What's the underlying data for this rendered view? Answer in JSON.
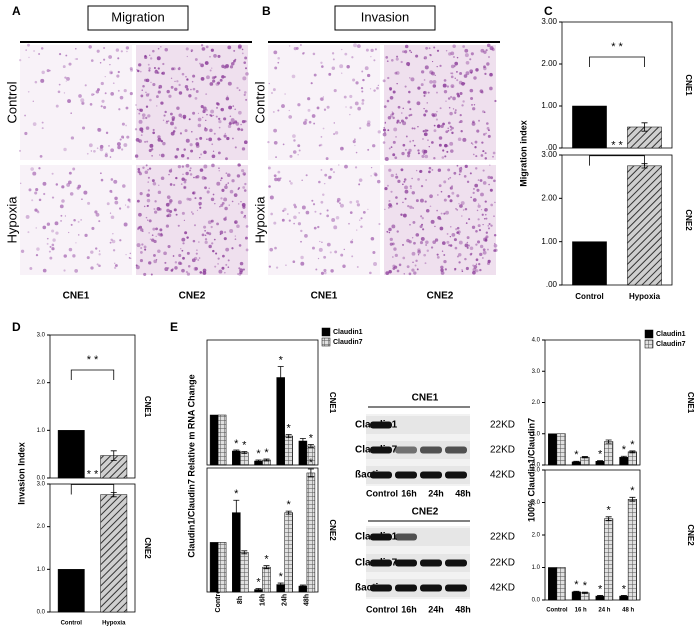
{
  "figure": {
    "panel_labels": [
      "A",
      "B",
      "C",
      "D",
      "E"
    ],
    "A": {
      "title": "Migration",
      "rows": [
        "Control",
        "Hypoxia"
      ],
      "columns": [
        "CNE1",
        "CNE2"
      ]
    },
    "B": {
      "title": "Invasion",
      "rows": [
        "Control",
        "Hypoxia"
      ],
      "columns": [
        "CNE1",
        "CNE2"
      ]
    },
    "blots": [
      {
        "title": "CNE1",
        "rows": [
          "Claudin1",
          "Claudin7",
          "ßactin"
        ],
        "sizes": [
          "22KD",
          "22KD",
          "42KD"
        ],
        "lanes": [
          "Control",
          "16h",
          "24h",
          "48h"
        ]
      },
      {
        "title": "CNE2",
        "rows": [
          "Claudin1",
          "Claudin7",
          "ßactin"
        ],
        "sizes": [
          "22KD",
          "22KD",
          "42KD"
        ],
        "lanes": [
          "Control",
          "16h",
          "24h",
          "48h"
        ]
      }
    ]
  },
  "chart_data": [
    {
      "type": "bar",
      "ylabel": "Migration index",
      "categories": [
        "Control",
        "Hypoxia"
      ],
      "panels": [
        {
          "name": "CNE1",
          "ylim": [
            0,
            3
          ],
          "yticks": [
            {
              "value": 0,
              "label": ".00"
            },
            {
              "value": 1,
              "label": "1.00"
            },
            {
              "value": 2,
              "label": "2.00"
            },
            {
              "value": 3,
              "label": "3.00"
            }
          ],
          "significance": "* *",
          "series": [
            {
              "colors": [
                "#000000",
                "#777777"
              ],
              "patterns": [
                null,
                "hatch"
              ],
              "values": [
                1.0,
                0.5
              ],
              "errors": [
                null,
                0.1
              ]
            }
          ]
        },
        {
          "name": "CNE2",
          "ylim": [
            0,
            3
          ],
          "yticks": [
            {
              "value": 0,
              "label": ".00"
            },
            {
              "value": 1,
              "label": "1.00"
            },
            {
              "value": 2,
              "label": "2.00"
            },
            {
              "value": 3,
              "label": "3.00"
            }
          ],
          "significance": "* *",
          "series": [
            {
              "colors": [
                "#000000",
                "#777777"
              ],
              "patterns": [
                null,
                "hatch"
              ],
              "values": [
                1.0,
                2.75
              ],
              "errors": [
                null,
                0.05
              ]
            }
          ]
        }
      ]
    },
    {
      "type": "bar",
      "ylabel": "Invasion Index",
      "categories": [
        "Control",
        "Hypoxia"
      ],
      "panels": [
        {
          "name": "CNE1",
          "ylim": [
            0,
            3
          ],
          "yticks": [
            {
              "value": 0,
              "label": "0.0"
            },
            {
              "value": 1,
              "label": "1.0"
            },
            {
              "value": 2,
              "label": "2.0"
            },
            {
              "value": 3,
              "label": "3.0"
            }
          ],
          "significance": "* *",
          "series": [
            {
              "colors": [
                "#000000",
                "#777777"
              ],
              "patterns": [
                null,
                "hatch"
              ],
              "values": [
                1.0,
                0.47
              ],
              "errors": [
                null,
                0.1
              ]
            }
          ]
        },
        {
          "name": "CNE2",
          "ylim": [
            0,
            3
          ],
          "yticks": [
            {
              "value": 0,
              "label": "0.0"
            },
            {
              "value": 1,
              "label": "1.0"
            },
            {
              "value": 2,
              "label": "2.0"
            },
            {
              "value": 3,
              "label": "3.0"
            }
          ],
          "significance": "* *",
          "series": [
            {
              "colors": [
                "#000000",
                "#777777"
              ],
              "patterns": [
                null,
                "hatch"
              ],
              "values": [
                1.0,
                2.75
              ],
              "errors": [
                null,
                0.05
              ]
            }
          ]
        }
      ]
    },
    {
      "type": "bar",
      "ylabel": "Claudin1/Claudin7 Relative m RNA Change",
      "categories": [
        "Control",
        "8h",
        "16h",
        "24h",
        "48h"
      ],
      "rotate_categories": true,
      "legend": true,
      "panels": [
        {
          "name": "CNE1",
          "ylim": [
            0,
            2.5
          ],
          "series": [
            {
              "name": "Claudin1",
              "color": "#000000",
              "values": [
                1.0,
                0.28,
                0.08,
                1.75,
                0.48
              ],
              "errors": [
                null,
                0.02,
                0.02,
                0.22,
                0.05
              ],
              "stars": [
                null,
                "*",
                "*",
                "*",
                null
              ]
            },
            {
              "name": "Claudin7",
              "color": "#888888",
              "pattern": "checker",
              "values": [
                1.0,
                0.25,
                0.1,
                0.58,
                0.38
              ],
              "errors": [
                null,
                0.02,
                0.02,
                0.03,
                0.03
              ],
              "stars": [
                null,
                "*",
                "*",
                "*",
                "*"
              ]
            }
          ]
        },
        {
          "name": "CNE2",
          "ylim": [
            0,
            2.5
          ],
          "series": [
            {
              "name": "Claudin1",
              "color": "#000000",
              "values": [
                1.0,
                1.6,
                0.05,
                0.15,
                0.12
              ],
              "errors": [
                null,
                0.25,
                0.02,
                0.03,
                0.02
              ],
              "stars": [
                null,
                "*",
                "*",
                "*",
                null
              ]
            },
            {
              "name": "Claudin7",
              "color": "#888888",
              "pattern": "checker",
              "values": [
                1.0,
                0.8,
                0.5,
                1.6,
                2.4
              ],
              "errors": [
                null,
                0.03,
                0.03,
                0.03,
                0.08
              ],
              "stars": [
                null,
                null,
                "*",
                "*",
                "*"
              ]
            }
          ]
        }
      ]
    },
    {
      "type": "bar",
      "ylabel": "100% Claudin1/Claudin7",
      "categories": [
        "Control",
        "16 h",
        "24 h",
        "48 h"
      ],
      "legend": true,
      "panels": [
        {
          "name": "CNE1",
          "ylim": [
            0,
            4
          ],
          "yticks": [
            {
              "value": 0,
              "label": "0.0"
            },
            {
              "value": 1,
              "label": "1.0"
            },
            {
              "value": 2,
              "label": "2.0"
            },
            {
              "value": 3,
              "label": "3.0"
            },
            {
              "value": 4,
              "label": "4.0"
            }
          ],
          "series": [
            {
              "name": "Claudin1",
              "color": "#000000",
              "values": [
                1.0,
                0.1,
                0.12,
                0.25
              ],
              "errors": [
                null,
                0.02,
                0.02,
                0.03
              ],
              "stars": [
                null,
                "*",
                "*",
                "*"
              ]
            },
            {
              "name": "Claudin7",
              "color": "#888888",
              "pattern": "checker",
              "values": [
                1.0,
                0.25,
                0.75,
                0.42
              ],
              "errors": [
                null,
                0.02,
                0.05,
                0.03
              ],
              "stars": [
                null,
                null,
                null,
                "*"
              ]
            }
          ]
        },
        {
          "name": "CNE2",
          "ylim": [
            0,
            4
          ],
          "yticks": [
            {
              "value": 0,
              "label": "0.0"
            },
            {
              "value": 1,
              "label": "1.0"
            },
            {
              "value": 2,
              "label": "2.0"
            },
            {
              "value": 3,
              "label": "3.0"
            },
            {
              "value": 4,
              "label": "4.0"
            }
          ],
          "series": [
            {
              "name": "Claudin1",
              "color": "#000000",
              "values": [
                1.0,
                0.25,
                0.12,
                0.12
              ],
              "errors": [
                null,
                0.02,
                0.02,
                0.02
              ],
              "stars": [
                null,
                "*",
                "*",
                "*"
              ]
            },
            {
              "name": "Claudin7",
              "color": "#888888",
              "pattern": "checker",
              "values": [
                1.0,
                0.22,
                2.5,
                3.1
              ],
              "errors": [
                null,
                0.02,
                0.06,
                0.06
              ],
              "stars": [
                null,
                "*",
                "*",
                "*"
              ]
            }
          ]
        }
      ]
    }
  ]
}
